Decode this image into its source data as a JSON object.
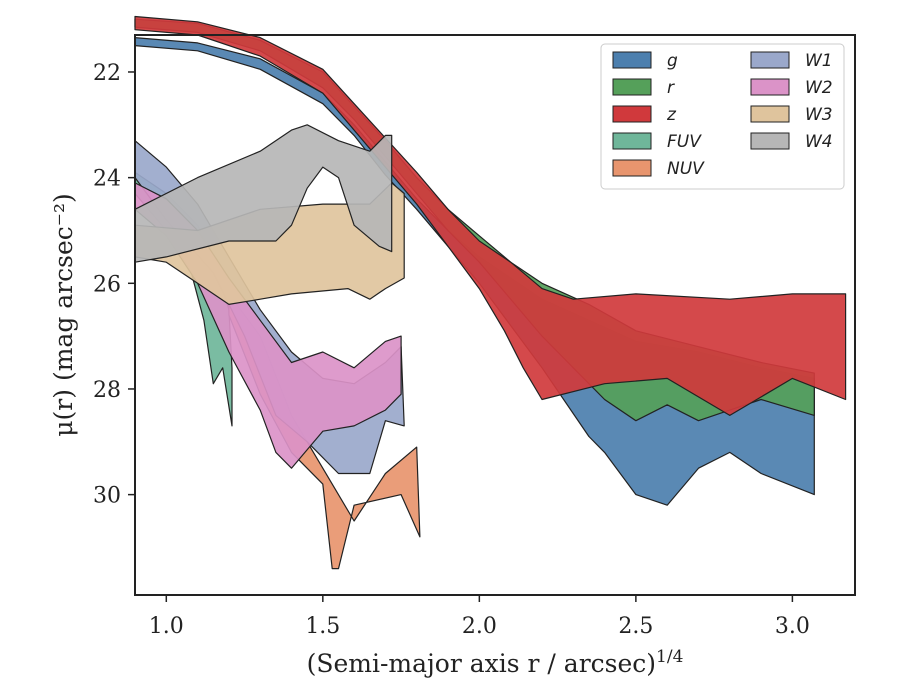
{
  "chart_data": {
    "type": "area",
    "xlabel": "(Semi-major axis r / arcsec)",
    "xlabel_exponent": "1/4",
    "ylabel": "μ(r) (mag arcsec⁻²)",
    "xlim": [
      0.9,
      3.2
    ],
    "ylim": [
      31.9,
      21.3
    ],
    "y_inverted": true,
    "x_ticks": [
      "1.0",
      "1.5",
      "2.0",
      "2.5",
      "3.0"
    ],
    "y_ticks": [
      "22",
      "24",
      "26",
      "28",
      "30"
    ],
    "legend_position": "top-right",
    "legend_columns": 2,
    "series": [
      {
        "name": "g",
        "color": "#4c7fae",
        "upper": [
          [
            0.9,
            21.35
          ],
          [
            1.1,
            21.45
          ],
          [
            1.3,
            21.75
          ],
          [
            1.5,
            22.4
          ],
          [
            1.6,
            23.0
          ],
          [
            1.7,
            23.7
          ],
          [
            1.8,
            24.4
          ],
          [
            1.9,
            25.0
          ],
          [
            2.0,
            25.5
          ],
          [
            2.1,
            25.9
          ],
          [
            2.2,
            26.3
          ],
          [
            2.35,
            26.7
          ],
          [
            2.5,
            27.1
          ],
          [
            2.7,
            27.3
          ],
          [
            2.9,
            27.6
          ],
          [
            3.07,
            27.8
          ]
        ],
        "lower": [
          [
            3.07,
            30.0
          ],
          [
            2.9,
            29.6
          ],
          [
            2.8,
            29.2
          ],
          [
            2.7,
            29.5
          ],
          [
            2.6,
            30.2
          ],
          [
            2.5,
            30.0
          ],
          [
            2.4,
            29.2
          ],
          [
            2.35,
            28.9
          ],
          [
            2.2,
            27.6
          ],
          [
            2.1,
            26.8
          ],
          [
            2.0,
            26.0
          ],
          [
            1.9,
            25.3
          ],
          [
            1.8,
            24.6
          ],
          [
            1.7,
            23.95
          ],
          [
            1.6,
            23.2
          ],
          [
            1.5,
            22.6
          ],
          [
            1.3,
            21.95
          ],
          [
            1.1,
            21.6
          ],
          [
            0.9,
            21.5
          ]
        ]
      },
      {
        "name": "r",
        "color": "#55a05a",
        "upper": [
          [
            0.9,
            21.0
          ],
          [
            1.1,
            21.08
          ],
          [
            1.3,
            21.4
          ],
          [
            1.5,
            22.0
          ],
          [
            1.6,
            22.65
          ],
          [
            1.7,
            23.3
          ],
          [
            1.8,
            24.0
          ],
          [
            1.9,
            24.6
          ],
          [
            2.0,
            25.1
          ],
          [
            2.1,
            25.6
          ],
          [
            2.2,
            26.0
          ],
          [
            2.35,
            26.4
          ],
          [
            2.5,
            26.9
          ],
          [
            2.7,
            27.2
          ],
          [
            2.9,
            27.5
          ],
          [
            3.07,
            27.7
          ]
        ],
        "lower": [
          [
            3.07,
            28.5
          ],
          [
            2.9,
            28.2
          ],
          [
            2.8,
            28.4
          ],
          [
            2.7,
            28.6
          ],
          [
            2.6,
            28.3
          ],
          [
            2.5,
            28.6
          ],
          [
            2.4,
            28.2
          ],
          [
            2.3,
            27.6
          ],
          [
            2.2,
            27.0
          ],
          [
            2.1,
            26.3
          ],
          [
            2.0,
            25.6
          ],
          [
            1.9,
            25.0
          ],
          [
            1.8,
            24.3
          ],
          [
            1.7,
            23.6
          ],
          [
            1.6,
            22.9
          ],
          [
            1.5,
            22.3
          ],
          [
            1.3,
            21.6
          ],
          [
            1.1,
            21.25
          ],
          [
            0.9,
            21.15
          ]
        ]
      },
      {
        "name": "z",
        "color": "#d0393c",
        "upper": [
          [
            0.9,
            20.95
          ],
          [
            1.1,
            21.05
          ],
          [
            1.3,
            21.35
          ],
          [
            1.5,
            21.95
          ],
          [
            1.6,
            22.6
          ],
          [
            1.7,
            23.25
          ],
          [
            1.8,
            23.9
          ],
          [
            1.9,
            24.6
          ],
          [
            2.0,
            25.2
          ],
          [
            2.1,
            25.6
          ],
          [
            2.2,
            26.1
          ],
          [
            2.3,
            26.3
          ],
          [
            2.5,
            26.2
          ],
          [
            2.8,
            26.3
          ],
          [
            3.0,
            26.2
          ],
          [
            3.17,
            26.2
          ]
        ],
        "lower": [
          [
            3.17,
            28.2
          ],
          [
            3.0,
            27.8
          ],
          [
            2.8,
            28.5
          ],
          [
            2.6,
            27.8
          ],
          [
            2.4,
            27.9
          ],
          [
            2.2,
            28.2
          ],
          [
            2.14,
            27.6
          ],
          [
            2.08,
            26.9
          ],
          [
            2.0,
            26.1
          ],
          [
            1.9,
            25.3
          ],
          [
            1.8,
            24.5
          ],
          [
            1.7,
            23.8
          ],
          [
            1.6,
            23.1
          ],
          [
            1.5,
            22.4
          ],
          [
            1.3,
            21.7
          ],
          [
            1.1,
            21.3
          ],
          [
            0.9,
            21.2
          ]
        ]
      },
      {
        "name": "FUV",
        "color": "#6fb69a",
        "upper": [
          [
            0.9,
            23.9
          ],
          [
            1.0,
            24.3
          ],
          [
            1.1,
            24.9
          ],
          [
            1.15,
            25.5
          ],
          [
            1.2,
            26.5
          ],
          [
            1.21,
            27.6
          ]
        ],
        "lower": [
          [
            1.21,
            28.7
          ],
          [
            1.18,
            27.6
          ],
          [
            1.15,
            27.9
          ],
          [
            1.12,
            26.7
          ],
          [
            1.08,
            25.8
          ],
          [
            1.0,
            25.0
          ],
          [
            0.9,
            24.3
          ]
        ]
      },
      {
        "name": "NUV",
        "color": "#e8956e",
        "upper": [
          [
            1.2,
            26.2
          ],
          [
            1.3,
            27.0
          ],
          [
            1.4,
            28.5
          ],
          [
            1.5,
            29.5
          ],
          [
            1.6,
            30.5
          ],
          [
            1.7,
            29.6
          ],
          [
            1.8,
            29.1
          ]
        ],
        "lower": [
          [
            1.81,
            30.8
          ],
          [
            1.75,
            30.0
          ],
          [
            1.6,
            30.2
          ],
          [
            1.55,
            31.4
          ],
          [
            1.53,
            31.4
          ],
          [
            1.5,
            29.8
          ],
          [
            1.4,
            29.2
          ],
          [
            1.3,
            28.1
          ],
          [
            1.2,
            26.6
          ]
        ]
      },
      {
        "name": "W1",
        "color": "#9aa8cb",
        "upper": [
          [
            0.9,
            23.3
          ],
          [
            1.0,
            23.8
          ],
          [
            1.1,
            24.5
          ],
          [
            1.2,
            25.5
          ],
          [
            1.3,
            26.5
          ],
          [
            1.4,
            27.3
          ],
          [
            1.5,
            27.8
          ],
          [
            1.6,
            27.9
          ],
          [
            1.7,
            27.5
          ],
          [
            1.75,
            27.2
          ]
        ],
        "lower": [
          [
            1.76,
            28.7
          ],
          [
            1.7,
            28.6
          ],
          [
            1.65,
            29.6
          ],
          [
            1.55,
            29.6
          ],
          [
            1.45,
            29.0
          ],
          [
            1.35,
            28.5
          ],
          [
            1.25,
            27.0
          ],
          [
            1.15,
            25.8
          ],
          [
            1.0,
            24.8
          ],
          [
            0.9,
            24.0
          ]
        ]
      },
      {
        "name": "W2",
        "color": "#db93c8",
        "upper": [
          [
            0.9,
            24.1
          ],
          [
            1.0,
            24.4
          ],
          [
            1.1,
            25.0
          ],
          [
            1.2,
            25.9
          ],
          [
            1.3,
            26.7
          ],
          [
            1.4,
            27.5
          ],
          [
            1.5,
            27.3
          ],
          [
            1.6,
            27.6
          ],
          [
            1.7,
            27.1
          ],
          [
            1.75,
            27.0
          ]
        ],
        "lower": [
          [
            1.75,
            28.1
          ],
          [
            1.7,
            28.4
          ],
          [
            1.6,
            28.7
          ],
          [
            1.5,
            28.8
          ],
          [
            1.4,
            29.5
          ],
          [
            1.35,
            29.2
          ],
          [
            1.3,
            28.4
          ],
          [
            1.2,
            27.3
          ],
          [
            1.1,
            26.0
          ],
          [
            1.0,
            25.1
          ],
          [
            0.9,
            24.6
          ]
        ]
      },
      {
        "name": "W3",
        "color": "#dfc49d",
        "upper": [
          [
            0.9,
            24.9
          ],
          [
            1.1,
            25.0
          ],
          [
            1.3,
            24.6
          ],
          [
            1.5,
            24.5
          ],
          [
            1.65,
            24.5
          ],
          [
            1.72,
            24.1
          ],
          [
            1.76,
            24.3
          ]
        ],
        "lower": [
          [
            1.76,
            25.9
          ],
          [
            1.7,
            26.1
          ],
          [
            1.65,
            26.3
          ],
          [
            1.58,
            26.1
          ],
          [
            1.4,
            26.2
          ],
          [
            1.3,
            26.3
          ],
          [
            1.2,
            26.4
          ],
          [
            1.1,
            26.0
          ],
          [
            1.0,
            25.6
          ],
          [
            0.9,
            25.5
          ]
        ]
      },
      {
        "name": "W4",
        "color": "#b6b6b6",
        "upper": [
          [
            0.9,
            24.6
          ],
          [
            1.1,
            24.0
          ],
          [
            1.3,
            23.5
          ],
          [
            1.4,
            23.1
          ],
          [
            1.45,
            23.0
          ],
          [
            1.55,
            23.3
          ],
          [
            1.65,
            23.5
          ],
          [
            1.7,
            23.2
          ],
          [
            1.72,
            23.2
          ]
        ],
        "lower": [
          [
            1.72,
            25.4
          ],
          [
            1.68,
            25.3
          ],
          [
            1.6,
            24.9
          ],
          [
            1.55,
            24.0
          ],
          [
            1.5,
            23.8
          ],
          [
            1.45,
            24.2
          ],
          [
            1.4,
            24.9
          ],
          [
            1.35,
            25.2
          ],
          [
            1.2,
            25.2
          ],
          [
            1.0,
            25.5
          ],
          [
            0.9,
            25.6
          ]
        ]
      }
    ]
  }
}
